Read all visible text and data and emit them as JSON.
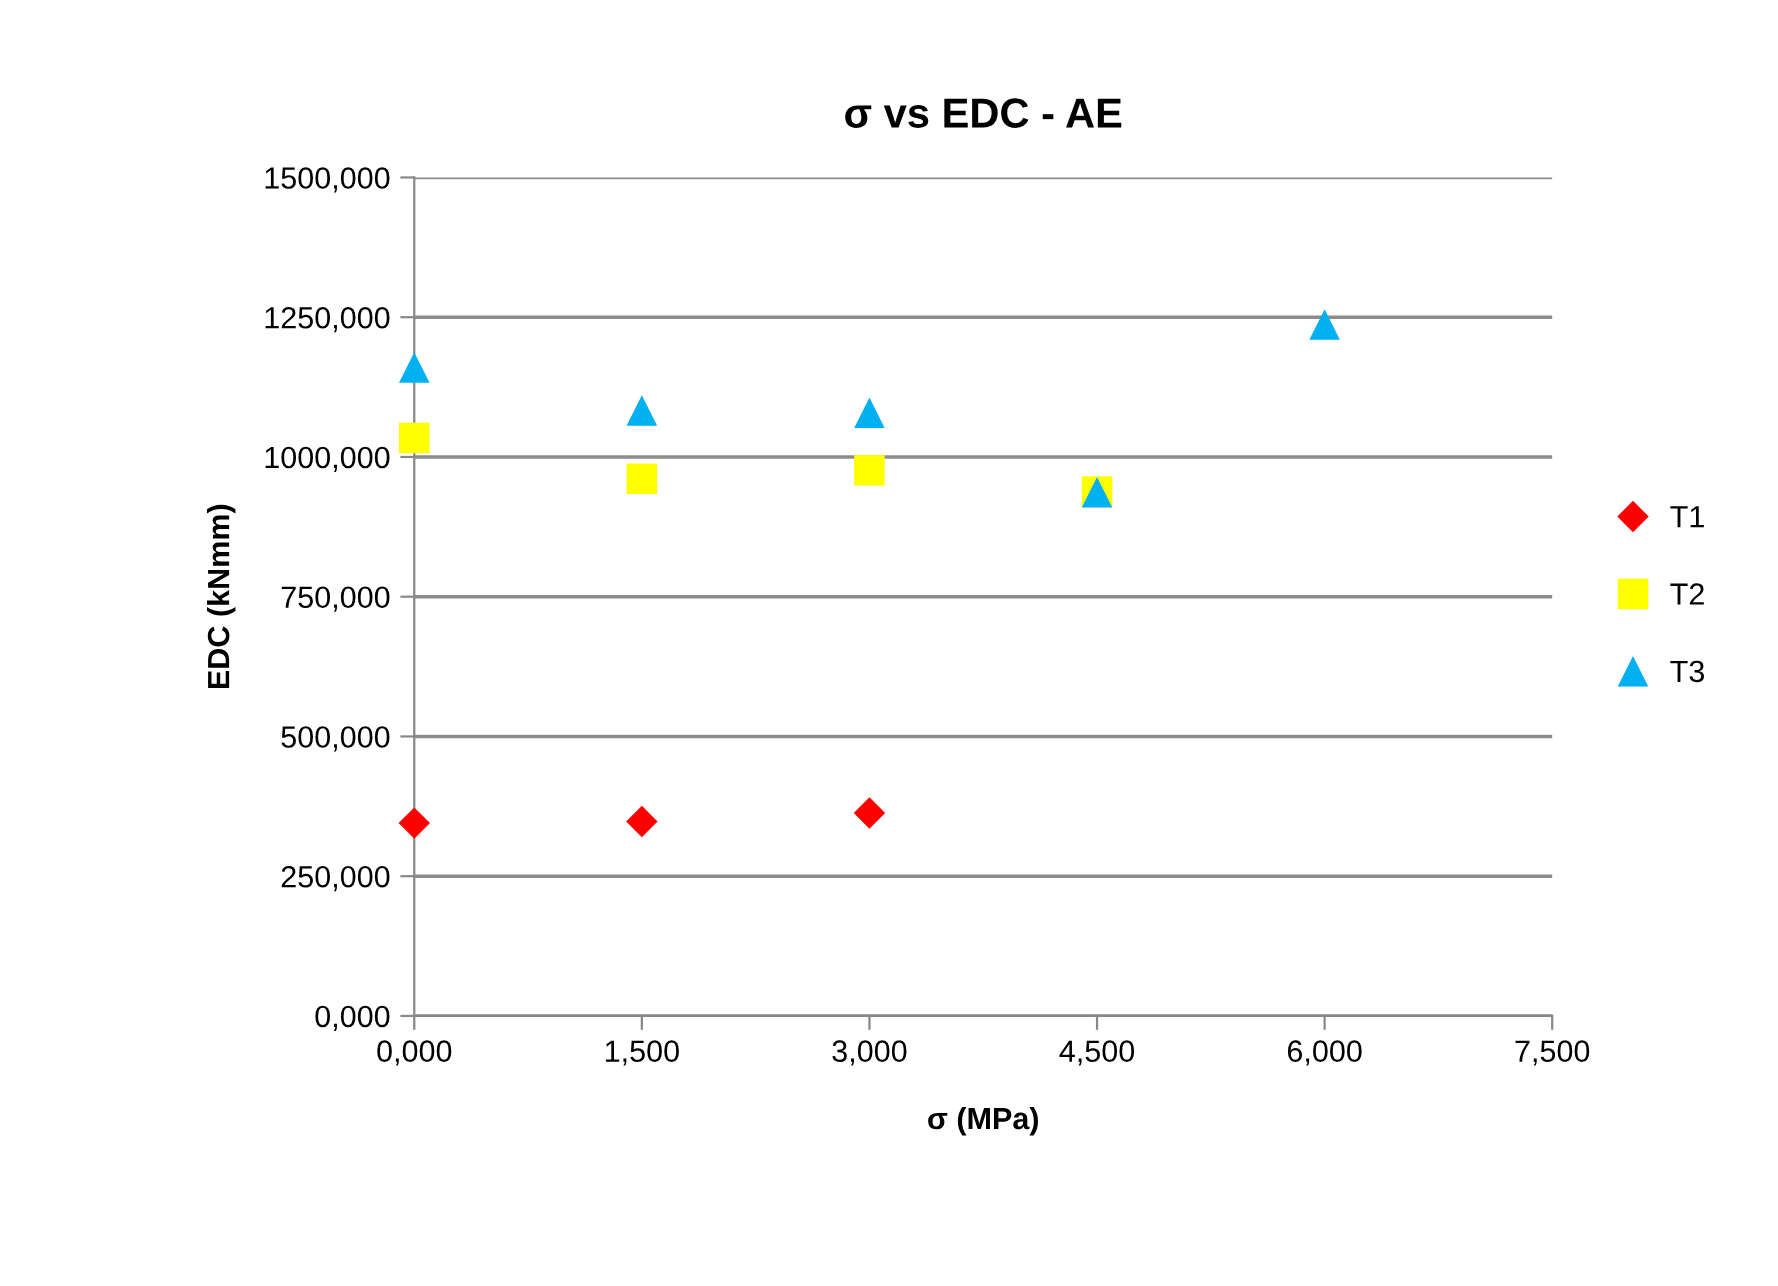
{
  "chart_data": {
    "type": "scatter",
    "title": "σ vs EDC - AE",
    "xlabel": "σ (MPa)",
    "ylabel": "EDC (kNmm)",
    "xlim": [
      0,
      7.5
    ],
    "ylim": [
      0,
      1500
    ],
    "xticks": [
      {
        "value": 0,
        "label": "0,000"
      },
      {
        "value": 1.5,
        "label": "1,500"
      },
      {
        "value": 3,
        "label": "3,000"
      },
      {
        "value": 4.5,
        "label": "4,500"
      },
      {
        "value": 6,
        "label": "6,000"
      },
      {
        "value": 7.5,
        "label": "7,500"
      }
    ],
    "yticks": [
      {
        "value": 0,
        "label": "0,000"
      },
      {
        "value": 250,
        "label": "250,000"
      },
      {
        "value": 500,
        "label": "500,000"
      },
      {
        "value": 750,
        "label": "750,000"
      },
      {
        "value": 1000,
        "label": "1000,000"
      },
      {
        "value": 1250,
        "label": "1250,000"
      },
      {
        "value": 1500,
        "label": "1500,000"
      }
    ],
    "grid": "y",
    "legend": "right",
    "series": [
      {
        "name": "T1",
        "color": "#ff0000",
        "marker": "diamond",
        "x": [
          0,
          1.5,
          3
        ],
        "values": [
          345,
          348,
          363
        ]
      },
      {
        "name": "T2",
        "color": "#ffff00",
        "marker": "square",
        "x": [
          0,
          1.5,
          3,
          4.5
        ],
        "values": [
          1034,
          961,
          976,
          938
        ]
      },
      {
        "name": "T3",
        "color": "#00b0f0",
        "marker": "triangle",
        "x": [
          0,
          1.5,
          3,
          4.5,
          6
        ],
        "values": [
          1160,
          1083,
          1079,
          937,
          1237
        ]
      }
    ]
  }
}
